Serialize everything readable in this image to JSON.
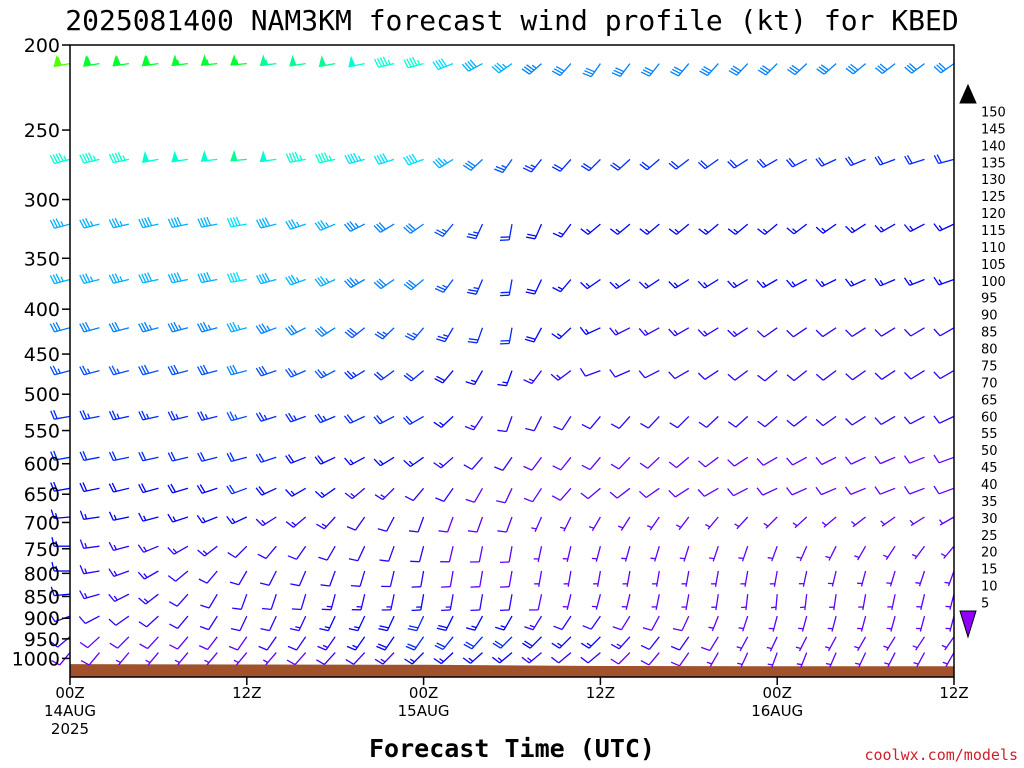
{
  "chart_data": {
    "type": "wind-barb time-height",
    "title": "2025081400 NAM3KM forecast wind profile (kt) for KBED",
    "xlabel": "Forecast Time (UTC)",
    "credit": "coolwx.com/models",
    "y_ticks": [
      200,
      250,
      300,
      350,
      400,
      450,
      500,
      550,
      600,
      650,
      700,
      750,
      800,
      850,
      900,
      950,
      1000
    ],
    "y_range_hpa": [
      200,
      1050
    ],
    "y_scale": "log-pressure",
    "x_range_hours": [
      0,
      60
    ],
    "x_ticks": [
      {
        "hour": 0,
        "line1": "00Z",
        "line2": "14AUG",
        "line3": "2025"
      },
      {
        "hour": 12,
        "line1": "12Z",
        "line2": "",
        "line3": ""
      },
      {
        "hour": 24,
        "line1": "00Z",
        "line2": "15AUG",
        "line3": ""
      },
      {
        "hour": 36,
        "line1": "12Z",
        "line2": "",
        "line3": ""
      },
      {
        "hour": 48,
        "line1": "00Z",
        "line2": "16AUG",
        "line3": ""
      },
      {
        "hour": 60,
        "line1": "12Z",
        "line2": "",
        "line3": ""
      }
    ],
    "colorbar": {
      "labels": [
        150,
        145,
        140,
        135,
        130,
        125,
        120,
        115,
        110,
        105,
        100,
        95,
        90,
        85,
        80,
        75,
        70,
        65,
        60,
        55,
        50,
        45,
        40,
        35,
        30,
        25,
        20,
        15,
        10,
        5
      ],
      "colors": [
        "#ff00ff",
        "#ff00d8",
        "#ff00b0",
        "#ff0088",
        "#ff0060",
        "#ff0038",
        "#ff0010",
        "#ff2800",
        "#ff5000",
        "#ff7800",
        "#ff9000",
        "#ffb000",
        "#ffd000",
        "#ffe800",
        "#ffff00",
        "#d8ff00",
        "#a0ff00",
        "#50ff00",
        "#00ff30",
        "#00ff90",
        "#00ffd0",
        "#00e0ff",
        "#00b0ff",
        "#0080ff",
        "#0050ff",
        "#0028ff",
        "#0000ff",
        "#3000ff",
        "#6000ff",
        "#9000ff"
      ],
      "top_color": "#000000",
      "bottom_color": "#9000ff"
    },
    "terrain": {
      "color": "#a0522d",
      "surface_pressure": [
        [
          0,
          1015
        ],
        [
          12,
          1016
        ],
        [
          24,
          1017
        ],
        [
          36,
          1020
        ],
        [
          48,
          1021
        ],
        [
          60,
          1021
        ]
      ]
    },
    "levels": [
      210,
      270,
      320,
      370,
      420,
      470,
      530,
      590,
      640,
      690,
      745,
      795,
      845,
      895,
      945,
      985
    ],
    "hours": [
      0,
      2,
      4,
      6,
      8,
      10,
      12,
      14,
      16,
      18,
      20,
      22,
      24,
      26,
      28,
      30,
      32,
      34,
      36,
      38,
      40,
      42,
      44,
      46,
      48,
      50,
      52,
      54,
      56,
      58,
      60
    ],
    "keyframes": {
      "hours": [
        0,
        12,
        24,
        30,
        36,
        48,
        60
      ],
      "levels": [
        210,
        270,
        320,
        370,
        420,
        470,
        530,
        590,
        640,
        690,
        745,
        795,
        845,
        895,
        945,
        985
      ],
      "dir": [
        [
          260,
          265,
          255,
          235,
          215,
          225,
          235
        ],
        [
          255,
          265,
          250,
          215,
          225,
          240,
          255
        ],
        [
          255,
          260,
          235,
          190,
          230,
          230,
          245
        ],
        [
          255,
          260,
          230,
          190,
          235,
          240,
          250
        ],
        [
          255,
          255,
          220,
          190,
          245,
          235,
          240
        ],
        [
          255,
          255,
          230,
          200,
          250,
          230,
          240
        ],
        [
          260,
          255,
          240,
          200,
          220,
          230,
          245
        ],
        [
          260,
          255,
          235,
          215,
          220,
          240,
          250
        ],
        [
          260,
          250,
          220,
          205,
          230,
          245,
          250
        ],
        [
          265,
          245,
          200,
          200,
          210,
          225,
          240
        ],
        [
          270,
          225,
          195,
          190,
          195,
          200,
          220
        ],
        [
          270,
          210,
          190,
          190,
          190,
          190,
          200
        ],
        [
          265,
          200,
          190,
          190,
          195,
          185,
          195
        ],
        [
          250,
          205,
          205,
          210,
          215,
          195,
          195
        ],
        [
          230,
          215,
          215,
          225,
          225,
          205,
          215
        ],
        [
          220,
          220,
          225,
          230,
          230,
          200,
          210
        ]
      ],
      "speed": [
        [
          60,
          55,
          45,
          35,
          30,
          30,
          30
        ],
        [
          45,
          50,
          40,
          25,
          20,
          20,
          20
        ],
        [
          35,
          40,
          30,
          20,
          15,
          15,
          15
        ],
        [
          35,
          40,
          30,
          20,
          15,
          15,
          15
        ],
        [
          30,
          35,
          25,
          20,
          15,
          12,
          12
        ],
        [
          25,
          30,
          20,
          15,
          12,
          12,
          12
        ],
        [
          22,
          25,
          20,
          12,
          10,
          10,
          10
        ],
        [
          20,
          22,
          15,
          10,
          8,
          8,
          8
        ],
        [
          18,
          20,
          12,
          8,
          8,
          8,
          8
        ],
        [
          15,
          15,
          10,
          8,
          5,
          5,
          5
        ],
        [
          15,
          12,
          10,
          8,
          5,
          5,
          5
        ],
        [
          15,
          10,
          10,
          8,
          5,
          5,
          5
        ],
        [
          15,
          10,
          15,
          10,
          5,
          5,
          5
        ],
        [
          12,
          10,
          20,
          15,
          10,
          5,
          5
        ],
        [
          10,
          8,
          20,
          20,
          15,
          5,
          5
        ],
        [
          8,
          5,
          15,
          15,
          10,
          5,
          5
        ]
      ]
    }
  }
}
